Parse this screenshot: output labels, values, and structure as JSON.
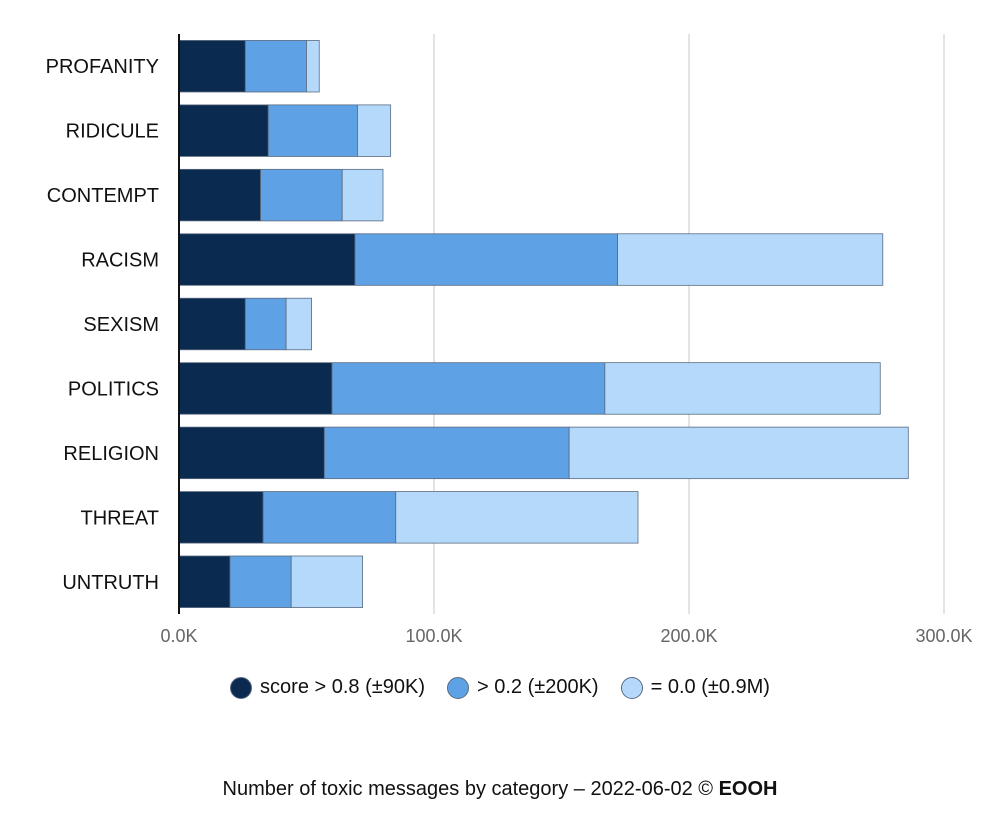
{
  "chart_data": {
    "type": "bar",
    "orientation": "horizontal",
    "stacked": true,
    "categories": [
      "PROFANITY",
      "RIDICULE",
      "CONTEMPT",
      "RACISM",
      "SEXISM",
      "POLITICS",
      "RELIGION",
      "THREAT",
      "UNTRUTH"
    ],
    "series": [
      {
        "name": "score > 0.8 (±90K)",
        "color": "#0b2a4f",
        "values": [
          26,
          35,
          32,
          69,
          26,
          60,
          57,
          33,
          20
        ]
      },
      {
        "name": "> 0.2 (±200K)",
        "color": "#5ea1e4",
        "values": [
          24,
          35,
          32,
          103,
          16,
          107,
          96,
          52,
          24
        ]
      },
      {
        "name": "= 0.0 (±0.9M)",
        "color": "#b5d9fb",
        "values": [
          5,
          13,
          16,
          104,
          10,
          108,
          133,
          95,
          28
        ]
      }
    ],
    "x_unit": "thousands",
    "xlim": [
      0,
      300
    ],
    "xticks": [
      {
        "value": 0,
        "label": "0.0K"
      },
      {
        "value": 100,
        "label": "100.0K"
      },
      {
        "value": 200,
        "label": "200.0K"
      },
      {
        "value": 300,
        "label": "300.0K"
      }
    ],
    "grid": "vertical",
    "legend_position": "bottom",
    "title": ""
  },
  "caption": {
    "text": "Number of toxic messages by category – 2022-06-02 © ",
    "brand": "EOOH"
  }
}
